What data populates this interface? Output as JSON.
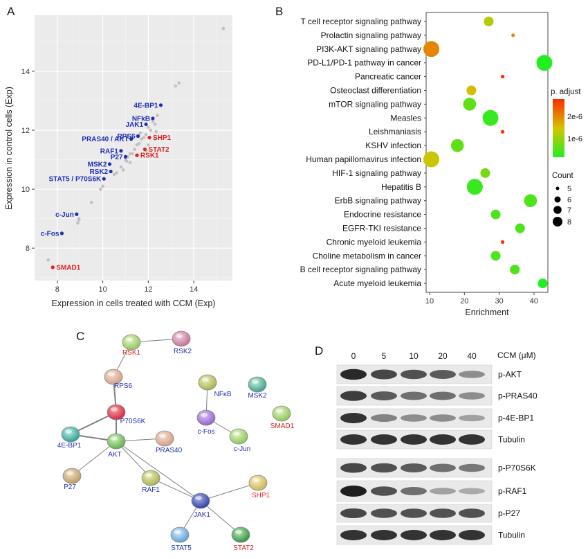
{
  "panel_a": {
    "letter": "A",
    "chart_data": {
      "type": "scatter",
      "xlabel": "Expression in cells treated with CCM (Exp)",
      "ylabel": "Expression in control cells (Exp)",
      "xlim": [
        7.0,
        15.7
      ],
      "ylim": [
        6.9,
        15.9
      ],
      "xticks": [
        8,
        10,
        12,
        14
      ],
      "yticks": [
        8,
        10,
        12,
        14
      ],
      "grid": true,
      "background_points": [
        [
          7.6,
          7.6
        ],
        [
          8.9,
          8.85
        ],
        [
          8.95,
          9.0
        ],
        [
          8.95,
          8.95
        ],
        [
          9.5,
          9.55
        ],
        [
          9.9,
          10.0
        ],
        [
          10.0,
          10.1
        ],
        [
          10.5,
          10.5
        ],
        [
          10.6,
          10.55
        ],
        [
          10.8,
          10.75
        ],
        [
          11.0,
          11.0
        ],
        [
          11.05,
          10.95
        ],
        [
          11.1,
          11.1
        ],
        [
          11.2,
          11.2
        ],
        [
          11.3,
          11.2
        ],
        [
          11.4,
          11.35
        ],
        [
          11.5,
          11.5
        ],
        [
          11.6,
          11.55
        ],
        [
          11.7,
          11.7
        ],
        [
          11.8,
          11.75
        ],
        [
          11.9,
          11.85
        ],
        [
          11.5,
          11.8
        ],
        [
          11.65,
          11.9
        ],
        [
          12.0,
          12.1
        ],
        [
          12.1,
          12.0
        ],
        [
          12.2,
          12.3
        ],
        [
          12.3,
          12.2
        ],
        [
          12.35,
          11.95
        ],
        [
          12.3,
          11.7
        ],
        [
          12.4,
          12.5
        ],
        [
          12.0,
          11.5
        ],
        [
          11.9,
          11.3
        ],
        [
          11.2,
          10.9
        ],
        [
          10.9,
          10.65
        ],
        [
          13.2,
          13.5
        ],
        [
          13.35,
          13.6
        ],
        [
          15.3,
          15.45
        ]
      ],
      "labeled_points": [
        {
          "label": "4E-BP1",
          "x": 12.55,
          "y": 12.85,
          "color": "#1f2fb3"
        },
        {
          "label": "NFkB",
          "x": 12.2,
          "y": 12.4,
          "color": "#1f2fb3"
        },
        {
          "label": "JAK1",
          "x": 11.9,
          "y": 12.2,
          "color": "#1f2fb3"
        },
        {
          "label": "RPS6",
          "x": 11.55,
          "y": 11.8,
          "color": "#1f2fb3"
        },
        {
          "label": "PRAS40 / AKT",
          "x": 11.25,
          "y": 11.7,
          "color": "#1f2fb3"
        },
        {
          "label": "RAF1",
          "x": 10.8,
          "y": 11.3,
          "color": "#1f2fb3"
        },
        {
          "label": "P27",
          "x": 11.0,
          "y": 11.1,
          "color": "#1f2fb3"
        },
        {
          "label": "MSK2",
          "x": 10.3,
          "y": 10.85,
          "color": "#1f2fb3"
        },
        {
          "label": "RSK2",
          "x": 10.35,
          "y": 10.6,
          "color": "#1f2fb3"
        },
        {
          "label": "STAT5  / P70S6K",
          "x": 10.05,
          "y": 10.35,
          "color": "#1f2fb3"
        },
        {
          "label": "c-Jun",
          "x": 8.85,
          "y": 9.15,
          "color": "#1f2fb3"
        },
        {
          "label": "c-Fos",
          "x": 8.2,
          "y": 8.5,
          "color": "#1f2fb3"
        },
        {
          "label": "SHP1",
          "x": 12.05,
          "y": 11.75,
          "color": "#e02020"
        },
        {
          "label": "STAT2",
          "x": 11.85,
          "y": 11.35,
          "color": "#e02020"
        },
        {
          "label": "RSK1",
          "x": 11.5,
          "y": 11.15,
          "color": "#e02020"
        },
        {
          "label": "SMAD1",
          "x": 7.8,
          "y": 7.35,
          "color": "#e02020"
        }
      ]
    }
  },
  "panel_b": {
    "letter": "B",
    "chart_data": {
      "type": "scatter",
      "xlabel": "Enrichment",
      "xlim": [
        9,
        44
      ],
      "xticks": [
        10,
        20,
        30,
        40
      ],
      "terms": [
        {
          "term": "T cell receptor signaling pathway",
          "enrichment": 27,
          "count": 6,
          "padj": 1.5e-06
        },
        {
          "term": "Prolactin signaling pathway",
          "enrichment": 34,
          "count": 5,
          "padj": 2e-06
        },
        {
          "term": "PI3K-AKT signaling pathway",
          "enrichment": 10.5,
          "count": 8,
          "padj": 2e-06
        },
        {
          "term": "PD-L1/PD-1 pathway in cancer",
          "enrichment": 43,
          "count": 8,
          "padj": 8e-07
        },
        {
          "term": "Pancreatic cancer",
          "enrichment": 31,
          "count": 5,
          "padj": 2.5e-06
        },
        {
          "term": "Osteoclast differentiation",
          "enrichment": 22,
          "count": 6,
          "padj": 1.7e-06
        },
        {
          "term": "mTOR signaling pathway",
          "enrichment": 21.5,
          "count": 7,
          "padj": 1.1e-06
        },
        {
          "term": "Measles",
          "enrichment": 27.5,
          "count": 8,
          "padj": 9e-07
        },
        {
          "term": "Leishmaniasis",
          "enrichment": 31,
          "count": 5,
          "padj": 2.5e-06
        },
        {
          "term": "KSHV infection",
          "enrichment": 18,
          "count": 7,
          "padj": 1.1e-06
        },
        {
          "term": "Human papillomavirus infection",
          "enrichment": 10.5,
          "count": 8,
          "padj": 1.6e-06
        },
        {
          "term": "HIF-1 signaling pathway",
          "enrichment": 26,
          "count": 6,
          "padj": 1.2e-06
        },
        {
          "term": "Hepatitis B",
          "enrichment": 23,
          "count": 8,
          "padj": 9e-07
        },
        {
          "term": "ErbB signaling pathway",
          "enrichment": 39,
          "count": 7,
          "padj": 1e-06
        },
        {
          "term": "Endocrine resistance",
          "enrichment": 29,
          "count": 6,
          "padj": 1e-06
        },
        {
          "term": "EGFR-TKI resistance",
          "enrichment": 36,
          "count": 6,
          "padj": 1e-06
        },
        {
          "term": "Chronic myeloid leukemia",
          "enrichment": 31,
          "count": 5,
          "padj": 2.5e-06
        },
        {
          "term": "Choline metabolism in cancer",
          "enrichment": 29,
          "count": 6,
          "padj": 1e-06
        },
        {
          "term": "B cell receptor signaling pathway",
          "enrichment": 34.5,
          "count": 6,
          "padj": 1e-06
        },
        {
          "term": "Acute myeloid leukemia",
          "enrichment": 42.5,
          "count": 6,
          "padj": 8e-07
        }
      ],
      "color_legend": {
        "title": "p. adjust",
        "labels": [
          "2e-6",
          "1e-6"
        ],
        "high": "#ff2a00",
        "mid": "#d4c400",
        "low": "#22ee22"
      },
      "size_legend": {
        "title": "Count",
        "values": [
          "5",
          "6",
          "7",
          "8"
        ]
      }
    }
  },
  "panel_c": {
    "letter": "C",
    "nodes": [
      {
        "id": "RSK1",
        "color": "#e02020"
      },
      {
        "id": "RSK2",
        "color": "#1f2fb3"
      },
      {
        "id": "RPS6",
        "color": "#1f2fb3"
      },
      {
        "id": "P70S6K",
        "color": "#1f2fb3"
      },
      {
        "id": "4E-BP1",
        "color": "#1f2fb3"
      },
      {
        "id": "AKT",
        "color": "#1f2fb3"
      },
      {
        "id": "PRAS40",
        "color": "#1f2fb3"
      },
      {
        "id": "P27",
        "color": "#1f2fb3"
      },
      {
        "id": "RAF1",
        "color": "#1f2fb3"
      },
      {
        "id": "JAK1",
        "color": "#1f2fb3"
      },
      {
        "id": "STAT5",
        "color": "#1f2fb3"
      },
      {
        "id": "STAT2",
        "color": "#e02020"
      },
      {
        "id": "SHP1",
        "color": "#e02020"
      },
      {
        "id": "NFκB",
        "color": "#1f2fb3"
      },
      {
        "id": "MSK2",
        "color": "#1f2fb3"
      },
      {
        "id": "c-Fos",
        "color": "#1f2fb3"
      },
      {
        "id": "c-Jun",
        "color": "#1f2fb3"
      },
      {
        "id": "SMAD1",
        "color": "#e02020"
      }
    ]
  },
  "panel_d": {
    "letter": "D",
    "concentrations": [
      "0",
      "5",
      "10",
      "20",
      "40"
    ],
    "unit_label": "CCM (μM)",
    "blots": [
      {
        "label": "p-AKT",
        "intensities": [
          0.95,
          0.8,
          0.75,
          0.7,
          0.45
        ]
      },
      {
        "label": "p-PRAS40",
        "intensities": [
          0.85,
          0.7,
          0.6,
          0.6,
          0.45
        ]
      },
      {
        "label": "p-4E-BP1",
        "intensities": [
          0.9,
          0.5,
          0.45,
          0.45,
          0.35
        ]
      },
      {
        "label": "Tubulin",
        "intensities": [
          0.9,
          0.9,
          0.9,
          0.9,
          0.9
        ]
      },
      {
        "label": "p-P70S6K",
        "intensities": [
          0.8,
          0.75,
          0.7,
          0.6,
          0.55
        ]
      },
      {
        "label": "p-RAF1",
        "intensities": [
          1.0,
          0.75,
          0.6,
          0.35,
          0.3
        ]
      },
      {
        "label": "p-P27",
        "intensities": [
          0.8,
          0.75,
          0.75,
          0.75,
          0.75
        ]
      },
      {
        "label": "Tubulin",
        "intensities": [
          0.9,
          0.9,
          0.9,
          0.9,
          0.9
        ]
      }
    ]
  }
}
